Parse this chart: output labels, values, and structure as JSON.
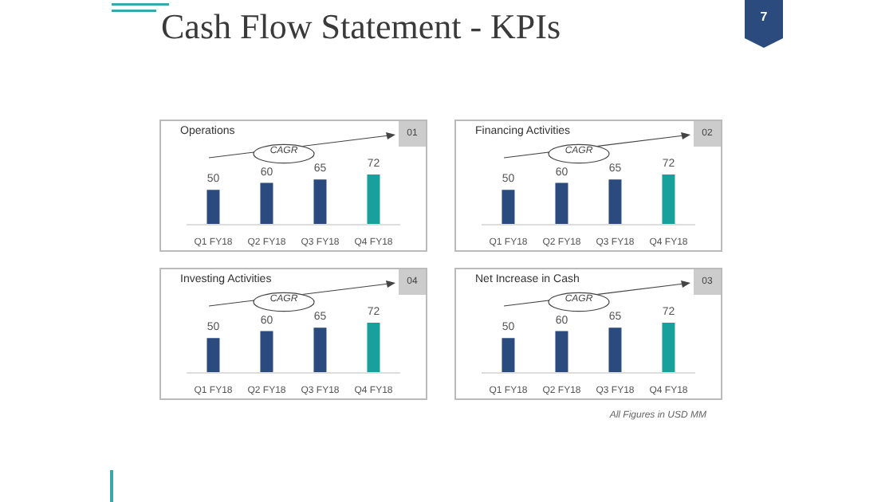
{
  "chart_data": [
    {
      "type": "other",
      "title": "Cash Flow Statement - KPIs",
      "annotations": [
        "7",
        "All Figures in USD MM"
      ]
    },
    {
      "type": "bar",
      "title": "Operations",
      "categories": [
        "Q1 FY18",
        "Q2 FY18",
        "Q3 FY18",
        "Q4 FY18"
      ],
      "values": [
        50,
        60,
        65,
        72
      ],
      "colors": [
        "#2b4a7e",
        "#2b4a7e",
        "#2b4a7e",
        "#17a09c"
      ],
      "data_labels": true,
      "annotations": [
        "CAGR",
        "01"
      ]
    },
    {
      "type": "bar",
      "title": "Financing Activities",
      "categories": [
        "Q1 FY18",
        "Q2 FY18",
        "Q3 FY18",
        "Q4 FY18"
      ],
      "values": [
        50,
        60,
        65,
        72
      ],
      "colors": [
        "#2b4a7e",
        "#2b4a7e",
        "#2b4a7e",
        "#17a09c"
      ],
      "data_labels": true,
      "annotations": [
        "CAGR",
        "02"
      ]
    },
    {
      "type": "bar",
      "title": "Investing Activities",
      "categories": [
        "Q1 FY18",
        "Q2 FY18",
        "Q3 FY18",
        "Q4 FY18"
      ],
      "values": [
        50,
        60,
        65,
        72
      ],
      "colors": [
        "#2b4a7e",
        "#2b4a7e",
        "#2b4a7e",
        "#17a09c"
      ],
      "data_labels": true,
      "annotations": [
        "CAGR",
        "04"
      ]
    },
    {
      "type": "bar",
      "title": "Net Increase in Cash",
      "categories": [
        "Q1 FY18",
        "Q2 FY18",
        "Q3 FY18",
        "Q4 FY18"
      ],
      "values": [
        50,
        60,
        65,
        72
      ],
      "colors": [
        "#2b4a7e",
        "#2b4a7e",
        "#2b4a7e",
        "#17a09c"
      ],
      "data_labels": true,
      "annotations": [
        "CAGR",
        "03"
      ]
    }
  ]
}
